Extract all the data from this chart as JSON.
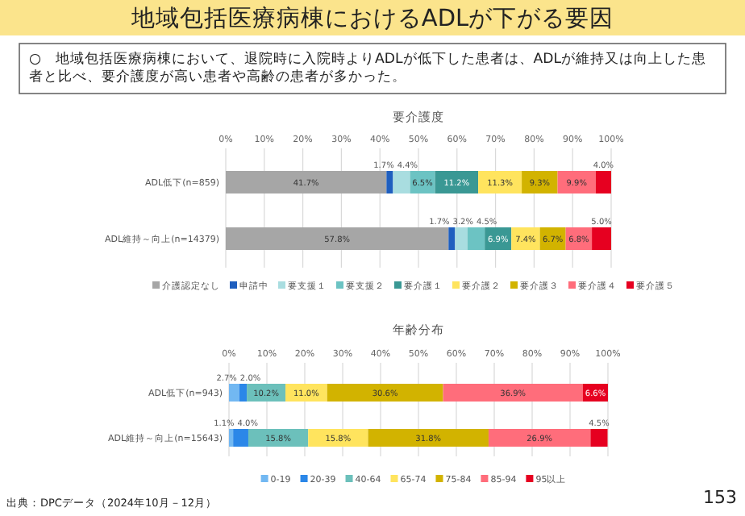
{
  "chart_data": [
    {
      "type": "other",
      "title": "地域包括医療病棟におけるADLが下がる要因",
      "subtitle": "○　地域包括医療病棟において、退院時に入院時よりADLが低下した患者は、ADLが維持又は向上した患者と比べ、要介護度が高い患者や高齢の患者が多かった。",
      "annotations": [
        "出典：DPCデータ（2024年10月－12月）",
        "153"
      ]
    },
    {
      "type": "bar",
      "orientation": "horizontal",
      "stacked": true,
      "title": "要介護度",
      "categories": [
        "ADL低下(n=859)",
        "ADL維持～向上(n=14379)"
      ],
      "series": [
        {
          "name": "介護認定なし",
          "color": "#a6a6a6",
          "values": [
            41.7,
            57.8
          ],
          "value_labels": [
            "41.7%",
            "57.8%"
          ]
        },
        {
          "name": "申請中",
          "color": "#1f5fbf",
          "values": [
            1.7,
            1.7
          ],
          "value_labels": [
            "1.7%",
            "1.7%"
          ]
        },
        {
          "name": "要支援１",
          "color": "#a9dde0",
          "values": [
            4.4,
            3.2
          ],
          "value_labels": [
            "4.4%",
            "3.2%"
          ]
        },
        {
          "name": "要支援２",
          "color": "#6cc3c3",
          "values": [
            6.5,
            4.5
          ],
          "value_labels": [
            "6.5%",
            "4.5%"
          ]
        },
        {
          "name": "要介護１",
          "color": "#3a9894",
          "values": [
            11.2,
            6.9
          ],
          "value_labels": [
            "11.2%",
            "6.9%"
          ]
        },
        {
          "name": "要介護２",
          "color": "#ffe45e",
          "values": [
            11.3,
            7.4
          ],
          "value_labels": [
            "11.3%",
            "7.4%"
          ]
        },
        {
          "name": "要介護３",
          "color": "#d2b300",
          "values": [
            9.3,
            6.7
          ],
          "value_labels": [
            "9.3%",
            "6.7%"
          ]
        },
        {
          "name": "要介護４",
          "color": "#ff6d7b",
          "values": [
            9.9,
            6.8
          ],
          "value_labels": [
            "9.9%",
            "6.8%"
          ]
        },
        {
          "name": "要介護５",
          "color": "#e60020",
          "values": [
            4.0,
            5.0
          ],
          "value_labels": [
            "4.0%",
            "5.0%"
          ]
        }
      ],
      "xlim": [
        0,
        100
      ],
      "xticks": [
        {
          "value": 0,
          "label": "0%"
        },
        {
          "value": 10,
          "label": "10%"
        },
        {
          "value": 20,
          "label": "20%"
        },
        {
          "value": 30,
          "label": "30%"
        },
        {
          "value": 40,
          "label": "40%"
        },
        {
          "value": 50,
          "label": "50%"
        },
        {
          "value": 60,
          "label": "60%"
        },
        {
          "value": 70,
          "label": "70%"
        },
        {
          "value": 80,
          "label": "80%"
        },
        {
          "value": 90,
          "label": "90%"
        },
        {
          "value": 100,
          "label": "100%"
        }
      ],
      "grid": "x",
      "legend": "bottom"
    },
    {
      "type": "bar",
      "orientation": "horizontal",
      "stacked": true,
      "title": "年齢分布",
      "categories": [
        "ADL低下(n=943)",
        "ADL維持～向上(n=15643)"
      ],
      "series": [
        {
          "name": "0-19",
          "color": "#72b8f2",
          "values": [
            2.7,
            1.1
          ],
          "value_labels": [
            "2.7%",
            "1.1%"
          ]
        },
        {
          "name": "20-39",
          "color": "#2b87e8",
          "values": [
            2.0,
            4.0
          ],
          "value_labels": [
            "2.0%",
            "4.0%"
          ]
        },
        {
          "name": "40-64",
          "color": "#6cc0bb",
          "values": [
            10.2,
            15.8
          ],
          "value_labels": [
            "10.2%",
            "15.8%"
          ]
        },
        {
          "name": "65-74",
          "color": "#ffe45e",
          "values": [
            11.0,
            15.8
          ],
          "value_labels": [
            "11.0%",
            "15.8%"
          ]
        },
        {
          "name": "75-84",
          "color": "#d2b300",
          "values": [
            30.6,
            31.8
          ],
          "value_labels": [
            "30.6%",
            "31.8%"
          ]
        },
        {
          "name": "85-94",
          "color": "#ff6d7b",
          "values": [
            36.9,
            26.9
          ],
          "value_labels": [
            "36.9%",
            "26.9%"
          ]
        },
        {
          "name": "95以上",
          "color": "#e60020",
          "values": [
            6.6,
            4.5
          ],
          "value_labels": [
            "6.6%",
            "4.5%"
          ]
        }
      ],
      "xlim": [
        0,
        100
      ],
      "xticks": [
        {
          "value": 0,
          "label": "0%"
        },
        {
          "value": 10,
          "label": "10%"
        },
        {
          "value": 20,
          "label": "20%"
        },
        {
          "value": 30,
          "label": "30%"
        },
        {
          "value": 40,
          "label": "40%"
        },
        {
          "value": 50,
          "label": "50%"
        },
        {
          "value": 60,
          "label": "60%"
        },
        {
          "value": 70,
          "label": "70%"
        },
        {
          "value": 80,
          "label": "80%"
        },
        {
          "value": 90,
          "label": "90%"
        },
        {
          "value": 100,
          "label": "100%"
        }
      ],
      "grid": "x",
      "legend": "bottom"
    }
  ]
}
